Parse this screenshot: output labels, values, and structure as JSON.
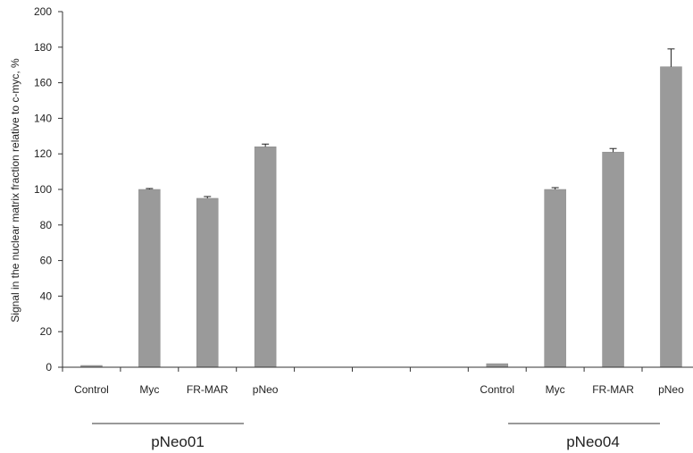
{
  "chart_data": {
    "type": "bar",
    "title": "",
    "xlabel": "",
    "ylabel": "Signal in the nuclear matrix fraction relative to c-myc, %",
    "ylim": [
      0,
      200
    ],
    "yticks": [
      0,
      20,
      40,
      60,
      80,
      100,
      120,
      140,
      160,
      180,
      200
    ],
    "grid": false,
    "legend": "none",
    "bar_color": "#9a9a9a",
    "groups": [
      {
        "name": "pNeo01",
        "categories": [
          "Control",
          "Myc",
          "FR-MAR",
          "pNeo"
        ],
        "values": [
          1,
          100,
          95,
          124
        ],
        "errors": [
          0,
          0.5,
          1,
          1.5
        ]
      },
      {
        "name": "pNeo04",
        "categories": [
          "Control",
          "Myc",
          "FR-MAR",
          "pNeo"
        ],
        "values": [
          2,
          100,
          121,
          169
        ],
        "errors": [
          0,
          1,
          2,
          10
        ]
      }
    ]
  }
}
